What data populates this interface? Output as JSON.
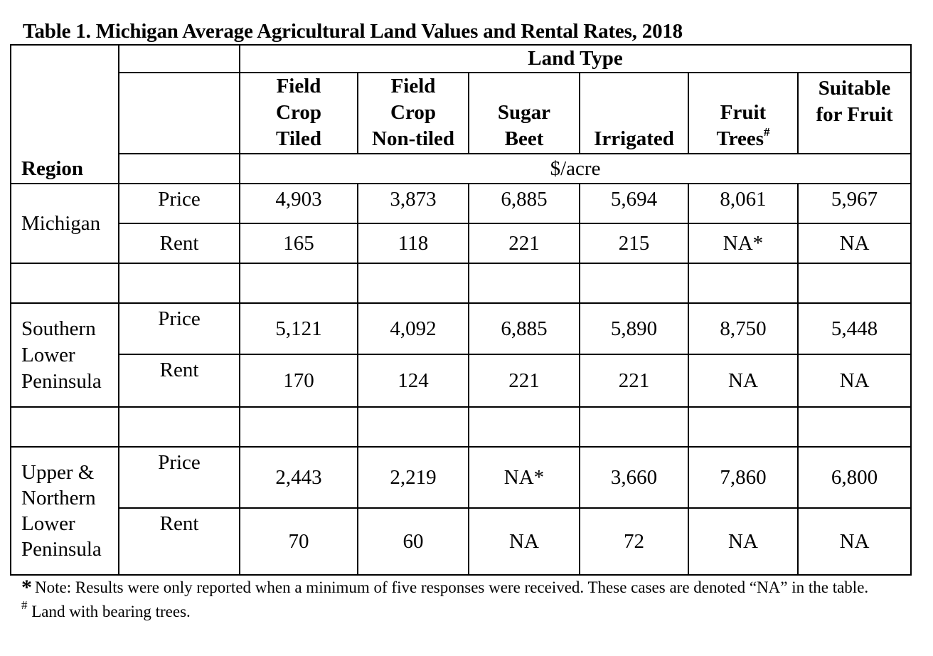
{
  "title": "Table 1. Michigan Average Agricultural Land Values and Rental Rates, 2018",
  "header": {
    "region_label": "Region",
    "land_type_label": "Land Type",
    "unit_label": "$/acre",
    "columns": [
      {
        "lines": [
          "Field",
          "Crop",
          "Tiled"
        ]
      },
      {
        "lines": [
          "Field",
          "Crop",
          "Non-tiled"
        ]
      },
      {
        "lines": [
          "Sugar",
          "Beet"
        ]
      },
      {
        "lines": [
          "Irrigated"
        ]
      },
      {
        "lines": [
          "Fruit",
          "Trees"
        ],
        "sup": "#"
      },
      {
        "lines": [
          "Suitable",
          "for Fruit"
        ]
      }
    ]
  },
  "regions": [
    {
      "name": "Michigan",
      "rows": [
        {
          "label": "Price",
          "values": [
            "4,903",
            "3,873",
            "6,885",
            "5,694",
            "8,061",
            "5,967"
          ]
        },
        {
          "label": "Rent",
          "values": [
            "165",
            "118",
            "221",
            "215",
            "NA*",
            "NA"
          ]
        }
      ]
    },
    {
      "name": "Southern Lower Peninsula",
      "rows": [
        {
          "label": "Price",
          "values": [
            "5,121",
            "4,092",
            "6,885",
            "5,890",
            "8,750",
            "5,448"
          ]
        },
        {
          "label": "Rent",
          "values": [
            "170",
            "124",
            "221",
            "221",
            "NA",
            "NA"
          ]
        }
      ]
    },
    {
      "name": "Upper & Northern Lower Peninsula",
      "rows": [
        {
          "label": "Price",
          "values": [
            "2,443",
            "2,219",
            "NA*",
            "3,660",
            "7,860",
            "6,800"
          ]
        },
        {
          "label": "Rent",
          "values": [
            "70",
            "60",
            "NA",
            "72",
            "NA",
            "NA"
          ]
        }
      ]
    }
  ],
  "notes": {
    "note1_marker": "*",
    "note1_text": "Note: Results were only reported when a minimum of five responses were received. These cases are denoted “NA” in the table.",
    "note2_marker": "#",
    "note2_text": "Land with bearing trees."
  }
}
